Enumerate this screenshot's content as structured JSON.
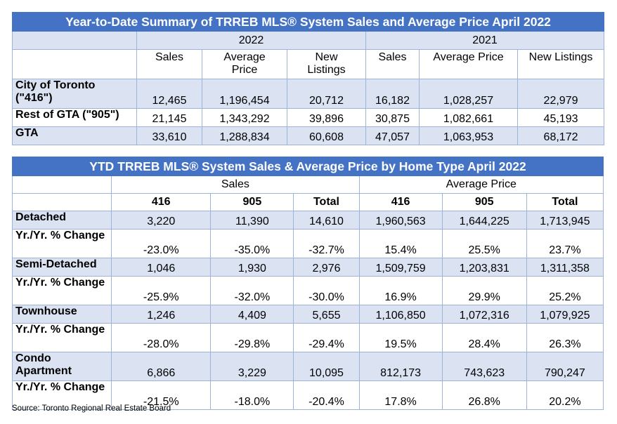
{
  "summary_table": {
    "title": "Year-to-Date Summary of TRREB MLS® System Sales and Average Price April 2022",
    "year_2022": "2022",
    "year_2021": "2021",
    "columns_2022": [
      "Sales",
      "Average\nPrice",
      "New\nListings"
    ],
    "columns_2021": [
      "Sales",
      "Average Price",
      "New Listings"
    ],
    "rows": [
      {
        "label": "City of Toronto (\"416\")",
        "values": [
          "12,465",
          "1,196,454",
          "20,712",
          "16,182",
          "1,028,257",
          "22,979"
        ]
      },
      {
        "label": "Rest of GTA (\"905\")",
        "values": [
          "21,145",
          "1,343,292",
          "39,896",
          "30,875",
          "1,082,661",
          "45,193"
        ]
      },
      {
        "label": "GTA",
        "values": [
          "33,610",
          "1,288,834",
          "60,608",
          "47,057",
          "1,063,953",
          "68,172"
        ]
      }
    ]
  },
  "hometype_table": {
    "title": "YTD TRREB MLS® System Sales & Average Price by Home Type April 2022",
    "group_sales": "Sales",
    "group_price": "Average Price",
    "sub_headers": [
      "416",
      "905",
      "Total",
      "416",
      "905",
      "Total"
    ],
    "rows": [
      {
        "label": "Detached",
        "values": [
          "3,220",
          "11,390",
          "14,610",
          "1,960,563",
          "1,644,225",
          "1,713,945"
        ]
      },
      {
        "label": "Yr./Yr. % Change",
        "values": [
          "-23.0%",
          "-35.0%",
          "-32.7%",
          "15.4%",
          "25.5%",
          "23.7%"
        ]
      },
      {
        "label": "Semi-Detached",
        "values": [
          "1,046",
          "1,930",
          "2,976",
          "1,509,759",
          "1,203,831",
          "1,311,358"
        ]
      },
      {
        "label": "Yr./Yr. % Change",
        "values": [
          "-25.9%",
          "-32.0%",
          "-30.0%",
          "16.9%",
          "29.9%",
          "25.2%"
        ]
      },
      {
        "label": "Townhouse",
        "values": [
          "1,246",
          "4,409",
          "5,655",
          "1,106,850",
          "1,072,316",
          "1,079,925"
        ]
      },
      {
        "label": "Yr./Yr. % Change",
        "values": [
          "-28.0%",
          "-29.8%",
          "-29.4%",
          "19.5%",
          "28.4%",
          "26.3%"
        ]
      },
      {
        "label": "Condo Apartment",
        "values": [
          "6,866",
          "3,229",
          "10,095",
          "812,173",
          "743,623",
          "790,247"
        ]
      },
      {
        "label": "Yr./Yr. % Change",
        "values": [
          "-21.5%",
          "-18.0%",
          "-20.4%",
          "17.8%",
          "26.8%",
          "20.2%"
        ]
      }
    ]
  },
  "source": "Source: Toronto Regional Real Estate Board",
  "colors": {
    "header_fill": "#4472c4",
    "band_fill": "#dbe3f3",
    "border": "#9db4d8"
  }
}
